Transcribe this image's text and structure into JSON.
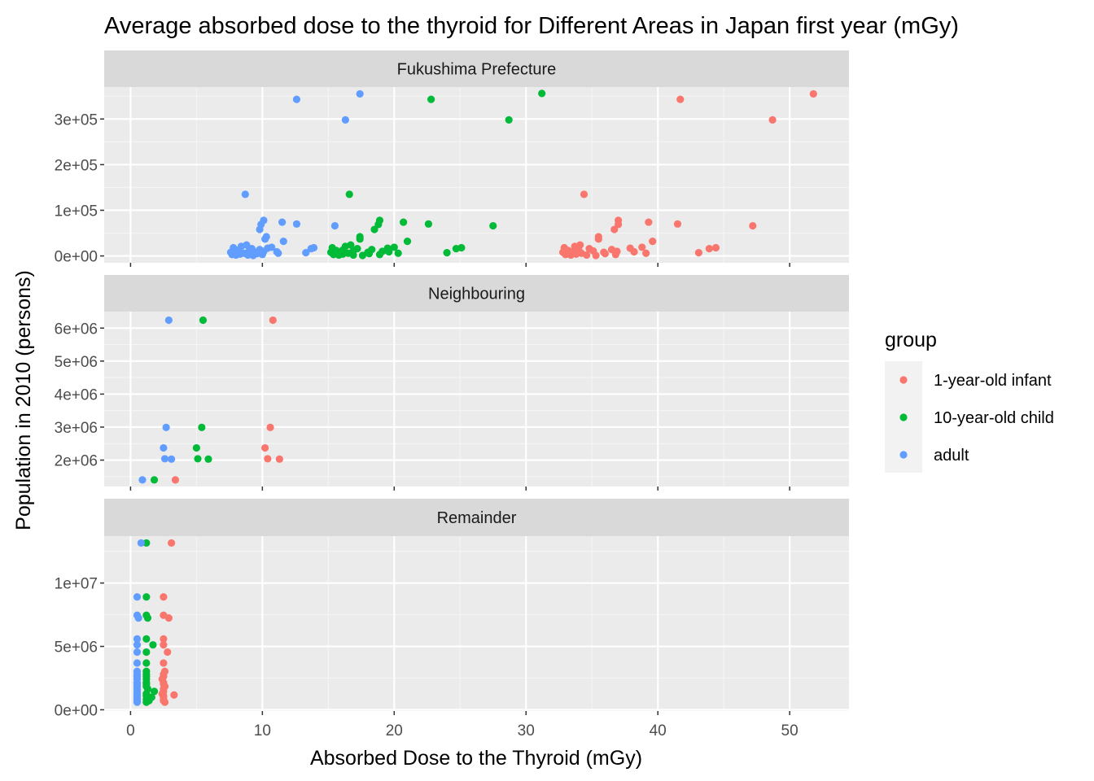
{
  "chart_data": {
    "type": "scatter",
    "title": "Average absorbed dose to the thyroid for Different Areas in Japan first year (mGy)",
    "xlabel": "Absorbed Dose to the Thyroid (mGy)",
    "ylabel": "Population in 2010 (persons)",
    "xlim": [
      -2,
      54.5
    ],
    "x_ticks": [
      0,
      10,
      20,
      30,
      40,
      50
    ],
    "x_tick_labels": [
      "0",
      "10",
      "20",
      "30",
      "40",
      "50"
    ],
    "grid": true,
    "legend": {
      "title": "group",
      "position": "right",
      "entries": [
        {
          "label": "1-year-old infant",
          "color": "#F8766D"
        },
        {
          "label": "10-year-old child",
          "color": "#00BA38"
        },
        {
          "label": "adult",
          "color": "#619CFF"
        }
      ]
    },
    "facets": [
      {
        "label": "Fukushima Prefecture",
        "ylim": [
          -15000,
          370000
        ],
        "y_ticks": [
          0,
          100000,
          200000,
          300000
        ],
        "y_tick_labels": [
          "0e+00",
          "1e+05",
          "2e+05",
          "3e+05"
        ],
        "series": [
          {
            "name": "1-year-old infant",
            "color": "#F8766D",
            "points": [
              [
                51.8,
                355000
              ],
              [
                41.7,
                343000
              ],
              [
                48.7,
                298000
              ],
              [
                34.4,
                135000
              ],
              [
                37,
                78000
              ],
              [
                39.3,
                74000
              ],
              [
                41.5,
                70000
              ],
              [
                37,
                69000
              ],
              [
                47.2,
                66000
              ],
              [
                36.7,
                58000
              ],
              [
                35.5,
                42000
              ],
              [
                35.5,
                37000
              ],
              [
                39.6,
                32000
              ],
              [
                38.8,
                19000
              ],
              [
                44.4,
                18000
              ],
              [
                43.9,
                16000
              ],
              [
                37.9,
                17000
              ],
              [
                36.5,
                14000
              ],
              [
                35.1,
                11000
              ],
              [
                36.9,
                10000
              ],
              [
                38.2,
                9000
              ],
              [
                43.1,
                7000
              ],
              [
                39.1,
                6000
              ],
              [
                33,
                3000
              ],
              [
                33.4,
                2000
              ],
              [
                33.8,
                4000
              ],
              [
                34.2,
                6000
              ],
              [
                34.6,
                2000
              ],
              [
                35.3,
                1000
              ],
              [
                36,
                5000
              ],
              [
                36.8,
                3000
              ],
              [
                33.5,
                9000
              ],
              [
                34,
                13000
              ],
              [
                32.9,
                18000
              ],
              [
                33.7,
                21000
              ],
              [
                34.1,
                24000
              ],
              [
                34.8,
                16000
              ],
              [
                32.8,
                8000
              ],
              [
                33.2,
                12000
              ],
              [
                35.9,
                8000
              ]
            ]
          },
          {
            "name": "10-year-old child",
            "color": "#00BA38",
            "points": [
              [
                31.2,
                356000
              ],
              [
                22.8,
                343000
              ],
              [
                28.7,
                298000
              ],
              [
                16.6,
                135000
              ],
              [
                18.9,
                78000
              ],
              [
                20.7,
                74000
              ],
              [
                22.6,
                70000
              ],
              [
                18.8,
                69000
              ],
              [
                27.5,
                66000
              ],
              [
                18.5,
                58000
              ],
              [
                17.4,
                42000
              ],
              [
                17.4,
                37000
              ],
              [
                21,
                32000
              ],
              [
                20,
                19000
              ],
              [
                25.1,
                18000
              ],
              [
                24.7,
                16000
              ],
              [
                19.5,
                17000
              ],
              [
                18.3,
                14000
              ],
              [
                16.9,
                11000
              ],
              [
                19.1,
                10000
              ],
              [
                19.6,
                9000
              ],
              [
                24,
                7000
              ],
              [
                20.3,
                6000
              ],
              [
                15.4,
                3000
              ],
              [
                15.8,
                2000
              ],
              [
                16.1,
                4000
              ],
              [
                16.5,
                6000
              ],
              [
                16.9,
                2000
              ],
              [
                17.6,
                1000
              ],
              [
                18.1,
                5000
              ],
              [
                18.9,
                3000
              ],
              [
                15.7,
                9000
              ],
              [
                16.1,
                13000
              ],
              [
                15.3,
                18000
              ],
              [
                16.3,
                21000
              ],
              [
                16.7,
                24000
              ],
              [
                17.2,
                16000
              ],
              [
                15.2,
                8000
              ],
              [
                15.6,
                12000
              ],
              [
                18,
                8000
              ]
            ]
          },
          {
            "name": "adult",
            "color": "#619CFF",
            "points": [
              [
                17.4,
                355000
              ],
              [
                12.6,
                343000
              ],
              [
                16.3,
                298000
              ],
              [
                8.7,
                135000
              ],
              [
                10.1,
                78000
              ],
              [
                11.5,
                74000
              ],
              [
                12.6,
                70000
              ],
              [
                9.9,
                69000
              ],
              [
                15.5,
                66000
              ],
              [
                9.8,
                58000
              ],
              [
                10.3,
                42000
              ],
              [
                10.2,
                37000
              ],
              [
                11.6,
                32000
              ],
              [
                10.7,
                19000
              ],
              [
                13.9,
                18000
              ],
              [
                13.7,
                16000
              ],
              [
                10.4,
                17000
              ],
              [
                9.8,
                14000
              ],
              [
                9,
                11000
              ],
              [
                10.1,
                10000
              ],
              [
                11.1,
                9000
              ],
              [
                13.3,
                7000
              ],
              [
                11.2,
                6000
              ],
              [
                7.7,
                3000
              ],
              [
                8,
                2000
              ],
              [
                8.3,
                4000
              ],
              [
                8.6,
                6000
              ],
              [
                8.9,
                2000
              ],
              [
                9.3,
                1000
              ],
              [
                9.6,
                5000
              ],
              [
                10,
                3000
              ],
              [
                7.9,
                9000
              ],
              [
                8.2,
                13000
              ],
              [
                7.8,
                18000
              ],
              [
                8.4,
                21000
              ],
              [
                8.8,
                24000
              ],
              [
                9.2,
                16000
              ],
              [
                7.6,
                8000
              ],
              [
                8.1,
                12000
              ],
              [
                9.5,
                8000
              ]
            ]
          }
        ]
      },
      {
        "label": "Neighbouring",
        "ylim": [
          1200000,
          6500000
        ],
        "y_ticks": [
          2000000,
          3000000,
          4000000,
          5000000,
          6000000
        ],
        "y_tick_labels": [
          "2e+06",
          "3e+06",
          "4e+06",
          "5e+06",
          "6e+06"
        ],
        "series": [
          {
            "name": "1-year-old infant",
            "color": "#F8766D",
            "points": [
              [
                10.8,
                6240000
              ],
              [
                10.6,
                2990000
              ],
              [
                10.2,
                2370000
              ],
              [
                10.4,
                2040000
              ],
              [
                11.3,
                2030000
              ],
              [
                3.4,
                1400000
              ]
            ]
          },
          {
            "name": "10-year-old child",
            "color": "#00BA38",
            "points": [
              [
                5.5,
                6240000
              ],
              [
                5.4,
                2990000
              ],
              [
                5,
                2370000
              ],
              [
                5.1,
                2040000
              ],
              [
                5.9,
                2030000
              ],
              [
                1.8,
                1400000
              ]
            ]
          },
          {
            "name": "adult",
            "color": "#619CFF",
            "points": [
              [
                2.9,
                6240000
              ],
              [
                2.7,
                2990000
              ],
              [
                2.5,
                2370000
              ],
              [
                2.6,
                2040000
              ],
              [
                3.1,
                2030000
              ],
              [
                0.9,
                1400000
              ]
            ]
          }
        ]
      },
      {
        "label": "Remainder",
        "ylim": [
          -100000,
          13700000
        ],
        "y_ticks": [
          0,
          5000000,
          10000000
        ],
        "y_tick_labels": [
          "0e+00",
          "5e+06",
          "1e+07"
        ],
        "series": [
          {
            "name": "1-year-old infant",
            "color": "#F8766D",
            "points": [
              [
                3.1,
                13160000
              ],
              [
                2.5,
                8900000
              ],
              [
                2.5,
                7460000
              ],
              [
                2.9,
                7240000
              ],
              [
                2.5,
                5590000
              ],
              [
                2.5,
                5120000
              ],
              [
                2.8,
                4550000
              ],
              [
                2.5,
                3690000
              ],
              [
                2.6,
                3030000
              ],
              [
                2.5,
                2800000
              ],
              [
                2.5,
                2620000
              ],
              [
                2.4,
                2420000
              ],
              [
                2.5,
                2140000
              ],
              [
                2.5,
                2030000
              ],
              [
                2.6,
                1850000
              ],
              [
                2.5,
                1640000
              ],
              [
                2.5,
                1450000
              ],
              [
                2.4,
                1260000
              ],
              [
                3.3,
                1170000
              ],
              [
                2.5,
                1110000
              ],
              [
                2.5,
                990000
              ],
              [
                2.5,
                830000
              ],
              [
                2.5,
                720000
              ],
              [
                2.6,
                600000
              ]
            ]
          },
          {
            "name": "10-year-old child",
            "color": "#00BA38",
            "points": [
              [
                1.2,
                13160000
              ],
              [
                1.2,
                8900000
              ],
              [
                1.2,
                7460000
              ],
              [
                1.3,
                7240000
              ],
              [
                1.2,
                5590000
              ],
              [
                1.7,
                5120000
              ],
              [
                1.2,
                4550000
              ],
              [
                1.2,
                3690000
              ],
              [
                1.2,
                3030000
              ],
              [
                1.2,
                2800000
              ],
              [
                1.2,
                2620000
              ],
              [
                1.2,
                2420000
              ],
              [
                1.2,
                2140000
              ],
              [
                1.2,
                2030000
              ],
              [
                1.2,
                1850000
              ],
              [
                1.3,
                1640000
              ],
              [
                1.8,
                1450000
              ],
              [
                1.2,
                1260000
              ],
              [
                1.2,
                1110000
              ],
              [
                1.6,
                990000
              ],
              [
                1.2,
                830000
              ],
              [
                1.4,
                720000
              ],
              [
                1.2,
                600000
              ]
            ]
          },
          {
            "name": "adult",
            "color": "#619CFF",
            "points": [
              [
                0.8,
                13160000
              ],
              [
                0.5,
                8900000
              ],
              [
                0.5,
                7460000
              ],
              [
                0.6,
                7240000
              ],
              [
                0.5,
                5590000
              ],
              [
                0.5,
                5120000
              ],
              [
                0.5,
                4550000
              ],
              [
                0.5,
                3690000
              ],
              [
                0.5,
                3030000
              ],
              [
                0.5,
                2800000
              ],
              [
                0.5,
                2620000
              ],
              [
                0.5,
                2420000
              ],
              [
                0.5,
                2140000
              ],
              [
                0.5,
                2030000
              ],
              [
                0.5,
                1850000
              ],
              [
                0.5,
                1640000
              ],
              [
                0.5,
                1450000
              ],
              [
                0.5,
                1260000
              ],
              [
                0.5,
                1110000
              ],
              [
                0.5,
                990000
              ],
              [
                0.5,
                830000
              ],
              [
                0.5,
                720000
              ],
              [
                0.5,
                600000
              ]
            ]
          }
        ]
      }
    ]
  }
}
